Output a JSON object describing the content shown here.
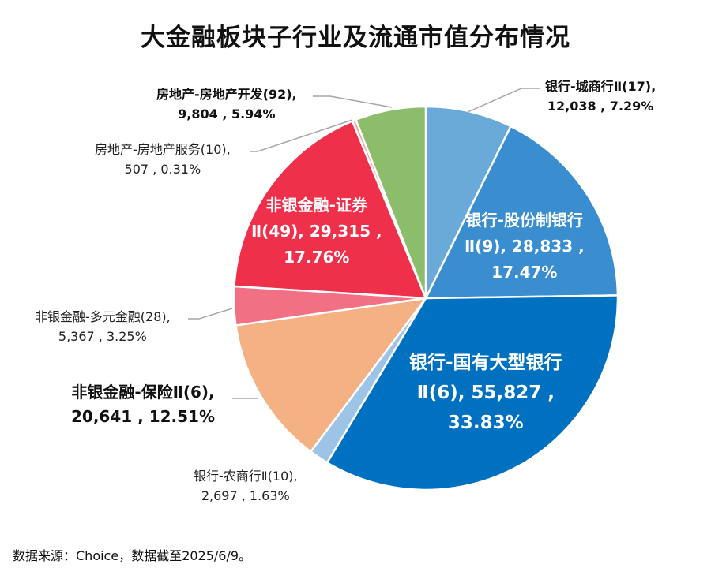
{
  "chart_data": {
    "type": "pie",
    "title": "大金融板块子行业及流通市值分布情况",
    "start": "top-clockwise",
    "slices": [
      {
        "line1": "银行-城商行Ⅱ(17),",
        "line2": "12,038 , 7.29%",
        "value": 12038,
        "percent": 7.29,
        "color": "#6aaad8"
      },
      {
        "line1": "银行-股份制银行",
        "line2": "Ⅱ(9), 28,833 ,",
        "line3": "17.47%",
        "value": 28833,
        "percent": 17.47,
        "color": "#3a8ecf"
      },
      {
        "line1": "银行-国有大型银行",
        "line2": "Ⅱ(6), 55,827 ,",
        "line3": "33.83%",
        "value": 55827,
        "percent": 33.83,
        "color": "#0070c0"
      },
      {
        "line1": "银行-农商行Ⅱ(10),",
        "line2": "2,697 , 1.63%",
        "value": 2697,
        "percent": 1.63,
        "color": "#9dc3e6"
      },
      {
        "line1": "非银金融-保险Ⅱ(6),",
        "line2": "20,641 , 12.51%",
        "value": 20641,
        "percent": 12.51,
        "color": "#f4b183"
      },
      {
        "line1": "非银金融-多元金融(28),",
        "line2": "5,367 , 3.25%",
        "value": 5367,
        "percent": 3.25,
        "color": "#f27083"
      },
      {
        "line1": "非银金融-证券",
        "line2": "Ⅱ(49), 29,315 ,",
        "line3": "17.76%",
        "value": 29315,
        "percent": 17.76,
        "color": "#ef304b"
      },
      {
        "line1": "房地产-房地产服务(10),",
        "line2": "507 , 0.31%",
        "value": 507,
        "percent": 0.31,
        "color": "#f4a3a8"
      },
      {
        "line1": "房地产-房地产开发(92),",
        "line2": "9,804 , 5.94%",
        "value": 9804,
        "percent": 5.94,
        "color": "#8cbd6a"
      }
    ]
  },
  "source": "数据来源：Choice，数据截至2025/6/9。"
}
